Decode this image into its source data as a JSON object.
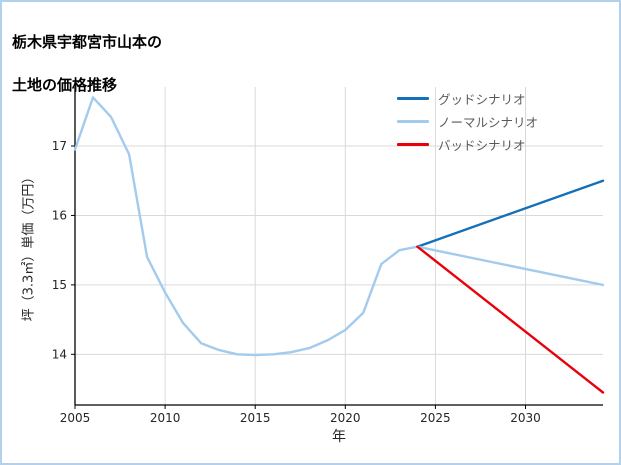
{
  "page": {
    "border_color": "#b3d1ea",
    "background": "#ffffff"
  },
  "chart_data": {
    "type": "line",
    "title_lines": [
      "栃木県宇都宮市山本の",
      "土地の価格推移"
    ],
    "xlabel": "年",
    "ylabel": "坪（3.3㎡）単価（万円）",
    "xlim": [
      2005,
      2034.3
    ],
    "ylim": [
      13.27,
      17.85
    ],
    "xticks": [
      2005,
      2010,
      2015,
      2020,
      2025,
      2030
    ],
    "yticks": [
      14,
      15,
      16,
      17
    ],
    "grid": true,
    "grid_color": "#d9d9d9",
    "spine_color": "#000000",
    "legend_position": "upper right",
    "series": [
      {
        "id": "history",
        "color": "#a3cbee",
        "in_legend": false,
        "x": [
          2005,
          2006,
          2007,
          2008,
          2009,
          2010,
          2011,
          2012,
          2013,
          2014,
          2015,
          2016,
          2017,
          2018,
          2019,
          2020,
          2021,
          2022,
          2023,
          2024
        ],
        "values": [
          16.95,
          17.7,
          17.42,
          16.88,
          15.4,
          14.89,
          14.45,
          14.16,
          14.06,
          14.0,
          13.99,
          14.0,
          14.03,
          14.09,
          14.2,
          14.35,
          14.6,
          15.3,
          15.5,
          15.55
        ]
      },
      {
        "id": "good",
        "name": "グッドシナリオ",
        "color": "#1470b8",
        "in_legend": true,
        "x": [
          2024,
          2034.3
        ],
        "values": [
          15.55,
          16.5
        ]
      },
      {
        "id": "normal",
        "name": "ノーマルシナリオ",
        "color": "#a3cbee",
        "in_legend": true,
        "x": [
          2024,
          2034.3
        ],
        "values": [
          15.55,
          15.0
        ]
      },
      {
        "id": "bad",
        "name": "バッドシナリオ",
        "color": "#e8000b",
        "in_legend": true,
        "x": [
          2024,
          2034.3
        ],
        "values": [
          15.55,
          13.45
        ]
      }
    ]
  }
}
